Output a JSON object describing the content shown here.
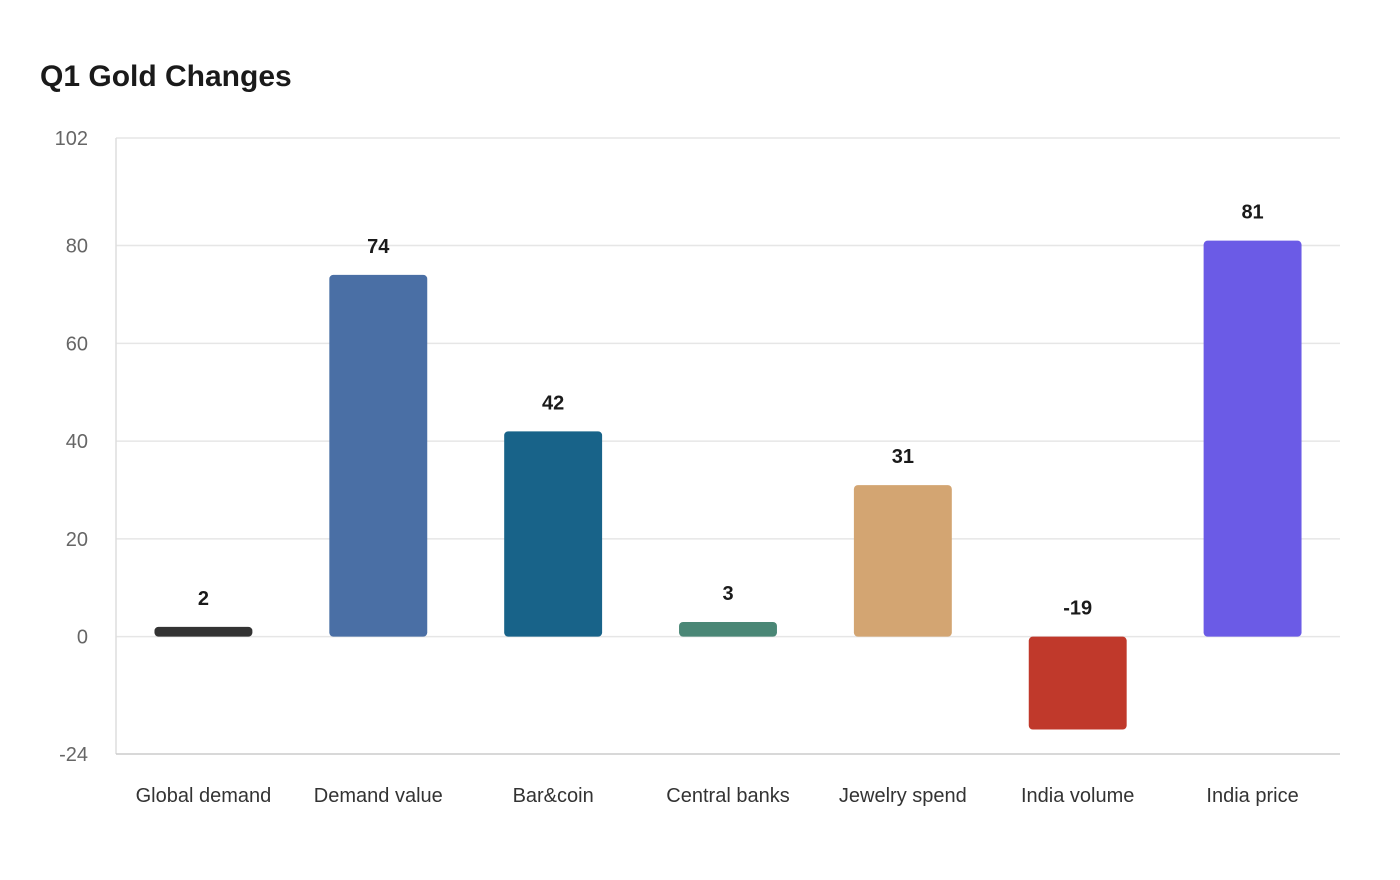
{
  "chart_data": {
    "type": "bar",
    "title": "Q1 Gold Changes",
    "xlabel": "",
    "ylabel": "",
    "ylim": [
      -24,
      102
    ],
    "yticks": [
      -24,
      0,
      20,
      40,
      60,
      80,
      102
    ],
    "grid": true,
    "categories": [
      "Global demand",
      "Demand value",
      "Bar&coin",
      "Central banks",
      "Jewelry spend",
      "India volume",
      "India price"
    ],
    "values": [
      2,
      74,
      42,
      3,
      31,
      -19,
      81
    ],
    "value_labels": [
      "2",
      "74",
      "42",
      "3",
      "31",
      "-19",
      "81"
    ],
    "colors": [
      "#333333",
      "#4a6fa5",
      "#186389",
      "#4a8776",
      "#d3a572",
      "#c0392b",
      "#6b5be6"
    ]
  }
}
